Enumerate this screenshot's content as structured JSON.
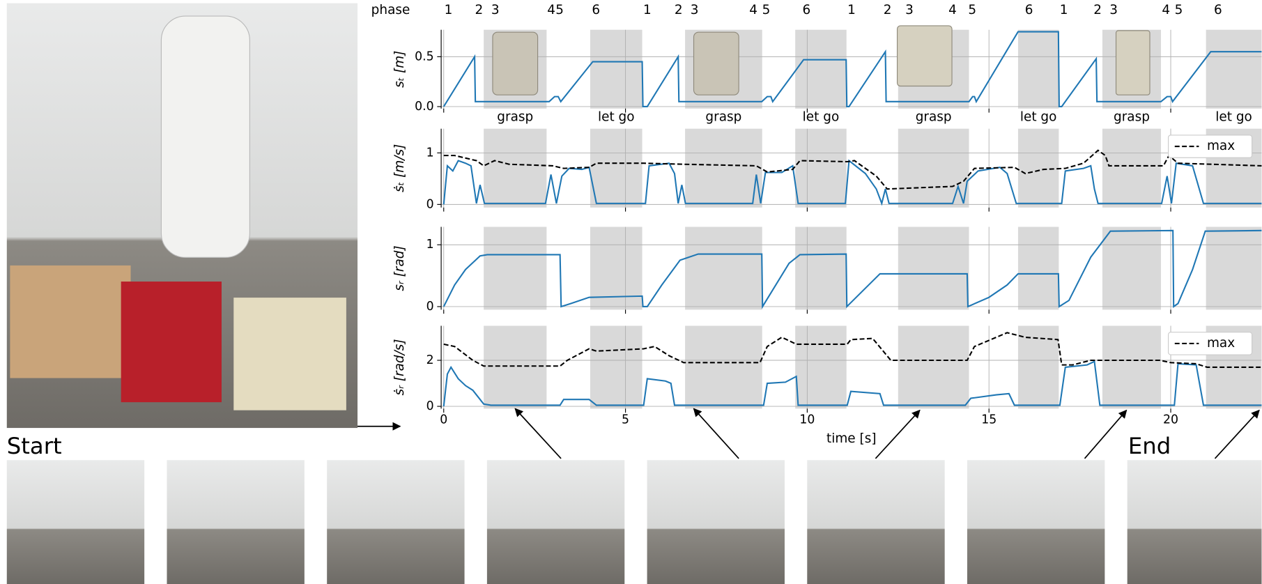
{
  "captions": {
    "start": "Start",
    "end": "End"
  },
  "phases": {
    "title": "phase",
    "labels": [
      "1",
      "2",
      "3",
      "4",
      "5",
      "6",
      "1",
      "2",
      "3",
      "4",
      "5",
      "6",
      "1",
      "2",
      "3",
      "4",
      "5",
      "6",
      "1",
      "2",
      "3",
      "4",
      "5",
      "6"
    ],
    "x": [
      0.13,
      0.97,
      1.42,
      2.96,
      3.19,
      4.19,
      5.6,
      6.46,
      6.9,
      8.52,
      8.87,
      9.98,
      11.22,
      12.21,
      12.81,
      14.0,
      14.54,
      16.1,
      17.06,
      17.99,
      18.43,
      19.87,
      20.22,
      21.3
    ],
    "spans": [
      [
        1.1,
        2.83
      ],
      [
        4.03,
        5.46
      ],
      [
        6.64,
        8.76
      ],
      [
        9.67,
        11.08
      ],
      [
        12.5,
        14.45
      ],
      [
        15.8,
        16.92
      ],
      [
        18.12,
        19.73
      ],
      [
        20.97,
        22.5
      ]
    ],
    "span_labels": [
      "grasp",
      "let go",
      "grasp",
      "let go",
      "grasp",
      "let go",
      "grasp",
      "let go"
    ]
  },
  "chart_data": [
    {
      "type": "line",
      "ylabel": "sₜ [m]",
      "xlim": [
        -0.07,
        22.5
      ],
      "ylim": [
        -0.02,
        0.77
      ],
      "yticks": [
        {
          "value": 0,
          "label": "0.0"
        },
        {
          "value": 0.5,
          "label": "0.5"
        }
      ],
      "grid": true,
      "series": [
        {
          "color": "#1f77b4",
          "style": "solid",
          "x": [
            0,
            0.85,
            0.87,
            2.9,
            3.05,
            3.15,
            3.22,
            4.1,
            5.46,
            5.48,
            5.6,
            6.45,
            6.47,
            8.75,
            8.9,
            9.0,
            9.05,
            9.9,
            11.07,
            11.09,
            11.15,
            12.15,
            12.17,
            14.45,
            14.55,
            14.6,
            14.65,
            15.8,
            16.91,
            16.93,
            17.0,
            17.95,
            17.97,
            19.73,
            19.9,
            20.0,
            20.05,
            21.1,
            22.5
          ],
          "values": [
            0,
            0.5,
            0.05,
            0.05,
            0.1,
            0.1,
            0.05,
            0.45,
            0.45,
            0,
            0,
            0.5,
            0.05,
            0.05,
            0.1,
            0.1,
            0.05,
            0.47,
            0.47,
            0,
            0,
            0.55,
            0.05,
            0.05,
            0.1,
            0.1,
            0.05,
            0.75,
            0.75,
            0,
            0,
            0.48,
            0.05,
            0.05,
            0.1,
            0.1,
            0.05,
            0.55,
            0.55
          ]
        }
      ]
    },
    {
      "type": "line",
      "ylabel": "ṡₜ [m/s]",
      "xlim": [
        -0.07,
        22.5
      ],
      "ylim": [
        -0.06,
        1.47
      ],
      "yticks": [
        0,
        1
      ],
      "grid": true,
      "legend": "upper right",
      "series": [
        {
          "color": "#1f77b4",
          "style": "solid",
          "x": [
            0,
            0.1,
            0.25,
            0.4,
            0.6,
            0.75,
            0.9,
            1.0,
            1.12,
            2.8,
            2.95,
            3.1,
            3.25,
            3.45,
            3.8,
            4.0,
            4.2,
            5.55,
            5.65,
            6.2,
            6.35,
            6.45,
            6.55,
            6.65,
            8.5,
            8.6,
            8.72,
            8.85,
            9.3,
            9.6,
            9.75,
            11.05,
            11.15,
            11.6,
            11.9,
            12.05,
            12.15,
            12.25,
            14.0,
            14.15,
            14.3,
            14.4,
            14.7,
            15.3,
            15.5,
            15.75,
            17.0,
            17.1,
            17.6,
            17.8,
            17.9,
            18.0,
            19.75,
            19.9,
            20.02,
            20.15,
            20.6,
            20.9,
            22.5
          ],
          "values": [
            0,
            0.75,
            0.65,
            0.85,
            0.8,
            0.75,
            0.02,
            0.38,
            0.02,
            0.02,
            0.58,
            0.02,
            0.55,
            0.7,
            0.68,
            0.72,
            0.02,
            0.02,
            0.75,
            0.8,
            0.6,
            0.02,
            0.38,
            0.02,
            0.02,
            0.58,
            0.02,
            0.62,
            0.62,
            0.75,
            0.02,
            0.02,
            0.85,
            0.6,
            0.3,
            0.02,
            0.3,
            0.02,
            0.02,
            0.35,
            0.02,
            0.45,
            0.65,
            0.72,
            0.6,
            0.02,
            0.02,
            0.65,
            0.7,
            0.75,
            0.3,
            0.02,
            0.02,
            0.55,
            0.02,
            0.8,
            0.75,
            0.02,
            0.02
          ]
        },
        {
          "name": "max",
          "color": "#000000",
          "style": "dashed",
          "x": [
            0,
            0.3,
            0.9,
            1.1,
            1.4,
            1.8,
            3.0,
            3.3,
            4.0,
            4.2,
            5.5,
            6.6,
            8.6,
            8.9,
            9.6,
            9.8,
            11.1,
            11.3,
            11.9,
            12.2,
            14.0,
            14.3,
            14.6,
            15.7,
            16.0,
            16.5,
            17.1,
            17.6,
            18.0,
            18.2,
            18.3,
            19.8,
            19.95,
            20.2,
            22.5
          ],
          "values": [
            0.95,
            0.95,
            0.85,
            0.75,
            0.85,
            0.78,
            0.75,
            0.7,
            0.72,
            0.8,
            0.8,
            0.78,
            0.75,
            0.63,
            0.68,
            0.85,
            0.83,
            0.85,
            0.55,
            0.3,
            0.35,
            0.45,
            0.7,
            0.72,
            0.6,
            0.68,
            0.7,
            0.8,
            1.05,
            0.95,
            0.75,
            0.75,
            0.95,
            0.8,
            0.75
          ]
        }
      ]
    },
    {
      "type": "line",
      "ylabel": "sᵣ [rad]",
      "xlim": [
        -0.07,
        22.5
      ],
      "ylim": [
        -0.05,
        1.29
      ],
      "yticks": [
        0,
        1
      ],
      "grid": true,
      "series": [
        {
          "color": "#1f77b4",
          "style": "solid",
          "x": [
            0,
            0.3,
            0.6,
            1.0,
            1.2,
            3.2,
            3.23,
            3.5,
            4.0,
            5.46,
            5.48,
            5.6,
            6.0,
            6.5,
            7.0,
            8.75,
            8.77,
            9.5,
            9.8,
            11.07,
            11.09,
            12.0,
            14.4,
            14.42,
            15.0,
            15.5,
            15.8,
            16.91,
            16.93,
            17.2,
            17.8,
            18.34,
            20.06,
            20.08,
            20.2,
            20.6,
            20.95,
            22.5
          ],
          "values": [
            0,
            0.35,
            0.6,
            0.82,
            0.84,
            0.84,
            0,
            0.05,
            0.15,
            0.17,
            0,
            0,
            0.35,
            0.75,
            0.85,
            0.85,
            0,
            0.7,
            0.84,
            0.85,
            0,
            0.53,
            0.53,
            0,
            0.15,
            0.35,
            0.53,
            0.53,
            0,
            0.1,
            0.8,
            1.22,
            1.23,
            0,
            0.05,
            0.6,
            1.22,
            1.23
          ]
        }
      ]
    },
    {
      "type": "line",
      "ylabel": "ṡᵣ [rad/s]",
      "xlabel": "time [s]",
      "xlim": [
        -0.07,
        22.5
      ],
      "xticks": [
        0,
        5,
        10,
        15,
        20
      ],
      "ylim": [
        -0.1,
        3.5
      ],
      "yticks": [
        0,
        2
      ],
      "grid": true,
      "legend": "upper right",
      "series": [
        {
          "color": "#1f77b4",
          "style": "solid",
          "x": [
            0,
            0.1,
            0.2,
            0.4,
            0.6,
            0.8,
            0.9,
            1.1,
            1.3,
            3.2,
            3.3,
            4.0,
            4.2,
            5.5,
            5.6,
            6.1,
            6.25,
            6.35,
            8.8,
            8.9,
            9.4,
            9.7,
            9.75,
            11.1,
            11.2,
            12.0,
            12.1,
            14.35,
            14.5,
            15.2,
            15.55,
            15.7,
            16.95,
            17.1,
            17.7,
            17.9,
            18.05,
            20.1,
            20.2,
            20.7,
            20.9,
            22.5
          ],
          "values": [
            0,
            1.4,
            1.7,
            1.2,
            0.9,
            0.7,
            0.5,
            0.1,
            0.05,
            0.05,
            0.3,
            0.3,
            0.05,
            0.05,
            1.2,
            1.1,
            1.0,
            0.05,
            0.05,
            1.0,
            1.05,
            1.3,
            0.05,
            0.05,
            0.65,
            0.55,
            0.05,
            0.05,
            0.35,
            0.5,
            0.55,
            0.05,
            0.05,
            1.7,
            1.8,
            1.95,
            0.05,
            0.05,
            1.85,
            1.8,
            0.05,
            0.05
          ]
        },
        {
          "name": "max",
          "color": "#000000",
          "style": "dashed",
          "x": [
            0,
            0.3,
            0.8,
            1.1,
            3.2,
            3.4,
            4.0,
            4.2,
            5.5,
            5.8,
            6.2,
            6.6,
            8.7,
            8.9,
            9.3,
            9.7,
            11.1,
            11.2,
            11.8,
            12.3,
            14.4,
            14.6,
            15.2,
            15.5,
            16.0,
            16.9,
            17.0,
            17.3,
            17.8,
            19.7,
            20.0,
            20.7,
            21.0,
            22.5
          ],
          "values": [
            2.7,
            2.6,
            2.0,
            1.75,
            1.75,
            2.0,
            2.5,
            2.4,
            2.5,
            2.6,
            2.2,
            1.9,
            1.9,
            2.6,
            3.0,
            2.7,
            2.7,
            2.9,
            2.95,
            2.0,
            2.0,
            2.6,
            3.0,
            3.2,
            3.0,
            2.9,
            1.8,
            1.8,
            2.0,
            2.0,
            1.9,
            1.85,
            1.7,
            1.7
          ]
        }
      ]
    }
  ]
}
